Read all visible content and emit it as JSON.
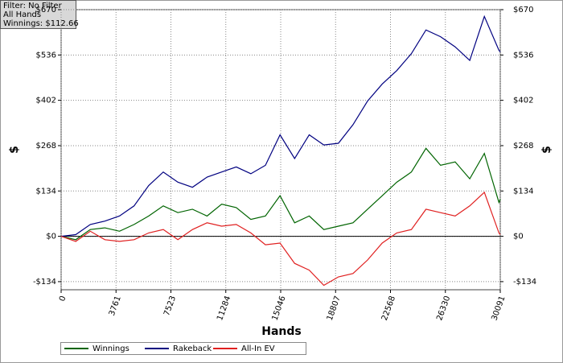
{
  "chart_data": {
    "type": "line",
    "annotations": [
      "Filter: No Filter",
      "All Hands",
      "Winnings: $112.66"
    ],
    "xlabel": "Hands",
    "ylabel": "$",
    "x": [
      0,
      1000,
      2000,
      3000,
      4000,
      5000,
      6000,
      7000,
      8000,
      9000,
      10000,
      11000,
      12000,
      13000,
      14000,
      15000,
      16000,
      17000,
      18000,
      19000,
      20000,
      21000,
      22000,
      23000,
      24000,
      25000,
      26000,
      27000,
      28000,
      29000,
      30000,
      30091
    ],
    "series": [
      {
        "name": "Winnings",
        "color": "#006400",
        "values": [
          0,
          -10,
          20,
          25,
          15,
          35,
          60,
          90,
          70,
          80,
          60,
          95,
          85,
          50,
          60,
          120,
          40,
          60,
          20,
          30,
          40,
          80,
          120,
          160,
          190,
          260,
          210,
          220,
          170,
          245,
          100,
          110
        ]
      },
      {
        "name": "Rakeback",
        "color": "#000080",
        "values": [
          0,
          5,
          35,
          45,
          60,
          90,
          150,
          190,
          160,
          145,
          175,
          190,
          205,
          185,
          210,
          300,
          230,
          300,
          270,
          275,
          330,
          400,
          450,
          490,
          540,
          610,
          590,
          560,
          520,
          650,
          550,
          545
        ]
      },
      {
        "name": "All-In EV",
        "color": "#e02020",
        "values": [
          0,
          -15,
          15,
          -10,
          -15,
          -10,
          10,
          20,
          -10,
          20,
          40,
          30,
          35,
          10,
          -25,
          -20,
          -80,
          -100,
          -145,
          -120,
          -110,
          -70,
          -20,
          10,
          20,
          80,
          70,
          60,
          90,
          130,
          10,
          5
        ]
      }
    ],
    "xlim": [
      0,
      30091
    ],
    "xticks": [
      0,
      3761,
      7523,
      11284,
      15046,
      18807,
      22568,
      26330,
      30091
    ],
    "ylim": [
      -158,
      670
    ],
    "yticks": [
      {
        "value": -134,
        "label": "-$134"
      },
      {
        "value": 0,
        "label": "$0"
      },
      {
        "value": 134,
        "label": "$134"
      },
      {
        "value": 268,
        "label": "$268"
      },
      {
        "value": 402,
        "label": "$402"
      },
      {
        "value": 536,
        "label": "$536"
      },
      {
        "value": 670,
        "label": "$670"
      }
    ],
    "grid": true,
    "legend": "bottom"
  }
}
